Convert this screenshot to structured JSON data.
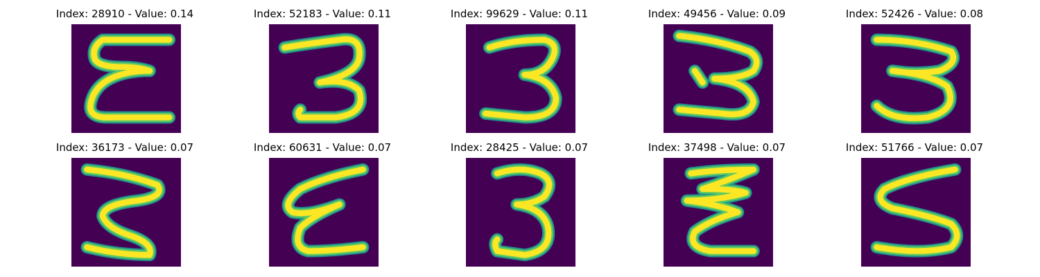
{
  "colors": {
    "background": "#440154",
    "stroke_edge": "#21918c",
    "stroke_mid": "#5ec962",
    "stroke_core": "#fde725"
  },
  "panels": [
    {
      "title": "Index: 28910 - Value: 0.14",
      "index": 28910,
      "value": 0.14
    },
    {
      "title": "Index: 52183 - Value: 0.11",
      "index": 52183,
      "value": 0.11
    },
    {
      "title": "Index: 99629 - Value: 0.11",
      "index": 99629,
      "value": 0.11
    },
    {
      "title": "Index: 49456 - Value: 0.09",
      "index": 49456,
      "value": 0.09
    },
    {
      "title": "Index: 52426 - Value: 0.08",
      "index": 52426,
      "value": 0.08
    },
    {
      "title": "Index: 36173 - Value: 0.07",
      "index": 36173,
      "value": 0.07
    },
    {
      "title": "Index: 60631 - Value: 0.07",
      "index": 60631,
      "value": 0.07
    },
    {
      "title": "Index: 28425 - Value: 0.07",
      "index": 28425,
      "value": 0.07
    },
    {
      "title": "Index: 37498 - Value: 0.07",
      "index": 37498,
      "value": 0.07
    },
    {
      "title": "Index: 51766 - Value: 0.07",
      "index": 51766,
      "value": 0.07
    }
  ]
}
